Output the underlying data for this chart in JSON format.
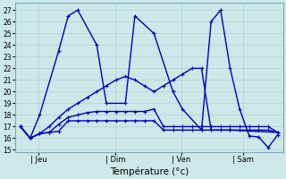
{
  "xlabel": "Température (°c)",
  "bg_color": "#cce8e8",
  "line_color": "#0000bb",
  "markersize": 3.5,
  "linewidth": 1.0,
  "ylim": [
    14.8,
    27.6
  ],
  "yticks": [
    15,
    16,
    17,
    18,
    19,
    20,
    21,
    22,
    23,
    24,
    25,
    26,
    27
  ],
  "xtick_labels": [
    "| Jeu",
    "| Dim",
    "| Ven",
    "| Sam"
  ],
  "xtick_positions": [
    0.07,
    0.37,
    0.625,
    0.865
  ],
  "xlim": [
    -0.02,
    1.02
  ],
  "line1": {
    "xi": [
      0,
      1,
      2,
      4,
      5,
      6,
      8,
      9,
      11,
      12,
      14,
      16,
      17,
      19,
      20,
      21,
      22,
      23,
      24,
      25,
      26,
      27
    ],
    "y": [
      17.0,
      16.0,
      18.0,
      23.5,
      26.5,
      27.0,
      24.0,
      19.0,
      19.0,
      26.5,
      25.0,
      20.0,
      18.5,
      16.7,
      26.0,
      27.0,
      22.0,
      18.5,
      16.2,
      16.1,
      15.2,
      16.3
    ]
  },
  "line2": {
    "xi": [
      0,
      1,
      2,
      3,
      4,
      5,
      6,
      7,
      8,
      9,
      10,
      11,
      12,
      13,
      14,
      15,
      16,
      17,
      18,
      19,
      20,
      21,
      22,
      23,
      24,
      25,
      26,
      27
    ],
    "y": [
      17.0,
      16.0,
      16.4,
      16.5,
      16.6,
      17.5,
      17.5,
      17.5,
      17.5,
      17.5,
      17.5,
      17.5,
      17.5,
      17.5,
      17.5,
      16.7,
      16.7,
      16.7,
      16.7,
      16.7,
      16.7,
      16.7,
      16.7,
      16.7,
      16.7,
      16.7,
      16.7,
      16.5
    ]
  },
  "line3": {
    "xi": [
      0,
      1,
      2,
      3,
      4,
      5,
      6,
      7,
      8,
      9,
      10,
      11,
      12,
      13,
      14,
      15,
      16,
      17,
      18,
      19,
      20,
      21,
      22,
      23,
      24,
      25,
      26,
      27
    ],
    "y": [
      17.0,
      16.0,
      16.4,
      16.5,
      17.2,
      17.8,
      18.0,
      18.2,
      18.3,
      18.3,
      18.3,
      18.3,
      18.3,
      18.3,
      18.5,
      17.0,
      17.0,
      17.0,
      17.0,
      17.0,
      17.0,
      17.0,
      17.0,
      17.0,
      17.0,
      17.0,
      17.0,
      16.5
    ]
  },
  "line4": {
    "xi": [
      0,
      1,
      2,
      3,
      4,
      5,
      6,
      7,
      8,
      9,
      10,
      11,
      12,
      13,
      14,
      15,
      16,
      17,
      18,
      19,
      20,
      22,
      27
    ],
    "y": [
      17.0,
      16.0,
      16.4,
      17.0,
      17.8,
      18.5,
      19.0,
      19.5,
      20.0,
      20.5,
      21.0,
      21.3,
      21.0,
      20.5,
      20.0,
      20.5,
      21.0,
      21.5,
      22.0,
      22.0,
      16.7,
      16.7,
      16.5
    ]
  },
  "n_points": 28
}
